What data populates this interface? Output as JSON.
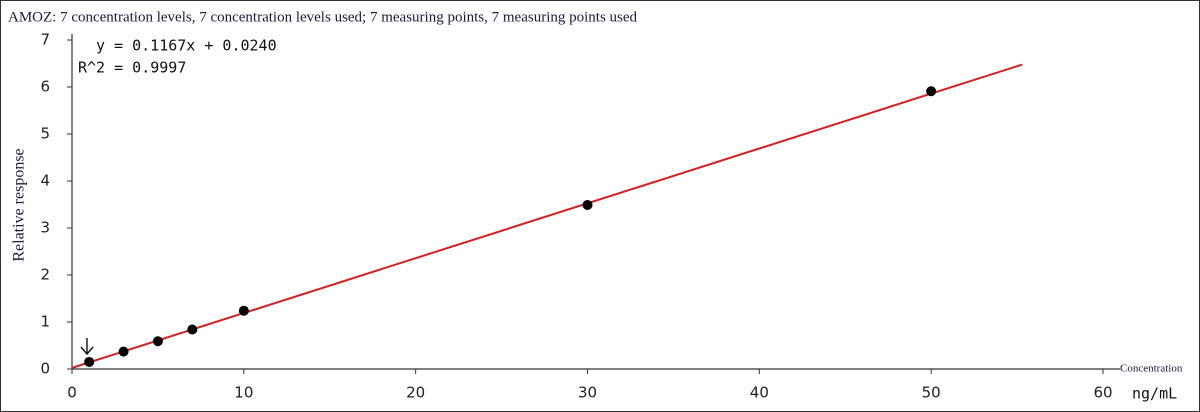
{
  "chart_data": {
    "type": "scatter",
    "title": "AMOZ: 7 concentration levels, 7 concentration levels used; 7 measuring points, 7 measuring points used",
    "y_label": "Relative response",
    "x_label": "Concentration",
    "x_unit": "ng/mL",
    "annotations": [
      "y = 0.1167x + 0.0240",
      "R^2 = 0.9997"
    ],
    "x": [
      1,
      3,
      5,
      7,
      10,
      30,
      50
    ],
    "values": [
      0.15,
      0.37,
      0.59,
      0.84,
      1.24,
      3.49,
      5.91
    ],
    "color": "#000000",
    "fit_line": {
      "x": [
        0,
        55.3
      ],
      "values": [
        0.024,
        6.477
      ],
      "color": "#d42020"
    },
    "xlim": [
      0,
      60
    ],
    "xticks": [
      0,
      10,
      20,
      30,
      40,
      50,
      60
    ],
    "ylim": [
      0,
      7
    ],
    "yticks": [
      0,
      1,
      2,
      3,
      4,
      5,
      6,
      7
    ]
  }
}
